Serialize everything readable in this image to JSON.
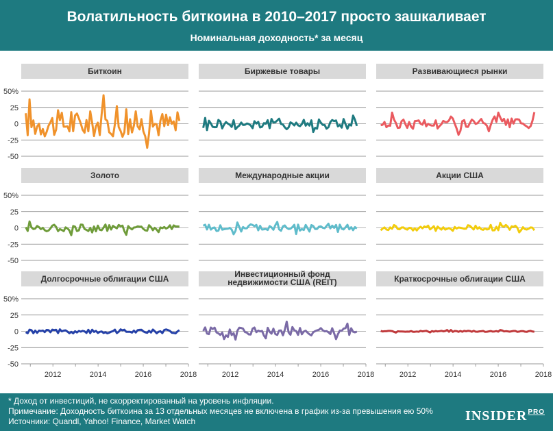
{
  "header": {
    "title": "Волатильность биткоина в 2010–2017 просто зашкаливает",
    "subtitle": "Номинальная доходность* за месяц"
  },
  "footer": {
    "note1": "* Доход от инвестиций, не скорректированный на уровень инфляции.",
    "note2": "Примечание: Доходность биткоина за 13 отдельных месяцев не включена в график из-за превышения ею 50%",
    "note3": "Источники: Quandl, Yahoo! Finance, Market Watch",
    "logo": "INSIDER",
    "logo_suffix": "PRO"
  },
  "colors": {
    "header_bg": "#1e7a80",
    "panel_label_bg": "#d9d9d9",
    "axis": "#555555"
  },
  "chart_data": [
    {
      "type": "line",
      "title": "Биткоин",
      "color": "#f0922b",
      "amplitude": "very high",
      "ylim": [
        -50,
        50
      ],
      "yticks": [
        "50%",
        "25",
        "0",
        "-25",
        "-50"
      ],
      "xticks": [
        "2012",
        "2014",
        "2016",
        "2018"
      ],
      "x_range": [
        2010.6,
        2018
      ],
      "series": [
        {
          "x_start": 2010.8,
          "x_end": 2017.6,
          "min": -37,
          "max": 46
        }
      ]
    },
    {
      "type": "line",
      "title": "Биржевые товары",
      "color": "#1e7a80",
      "amplitude": "low",
      "ylim": [
        -50,
        50
      ],
      "yticks": [
        "50%",
        "25",
        "0",
        "-25",
        "-50"
      ],
      "xticks": [
        "2012",
        "2014",
        "2016",
        "2018"
      ],
      "series": [
        {
          "x_start": 2010.8,
          "x_end": 2017.6,
          "min": -17,
          "max": 19
        }
      ]
    },
    {
      "type": "line",
      "title": "Развивающиеся рынки",
      "color": "#ea5a5f",
      "amplitude": "low",
      "ylim": [
        -50,
        50
      ],
      "yticks": [
        "50%",
        "25",
        "0",
        "-25",
        "-50"
      ],
      "xticks": [
        "2012",
        "2014",
        "2016",
        "2018"
      ],
      "series": [
        {
          "x_start": 2010.8,
          "x_end": 2017.6,
          "min": -17,
          "max": 18
        }
      ]
    },
    {
      "type": "line",
      "title": "Золото",
      "color": "#6f9c3a",
      "amplitude": "low",
      "ylim": [
        -50,
        50
      ],
      "yticks": [
        "50%",
        "25",
        "0",
        "-25",
        "-50"
      ],
      "xticks": [
        "2012",
        "2014",
        "2016",
        "2018"
      ],
      "series": [
        {
          "x_start": 2010.8,
          "x_end": 2017.6,
          "min": -12,
          "max": 12
        }
      ]
    },
    {
      "type": "line",
      "title": "Международные акции",
      "color": "#5fbccb",
      "amplitude": "low",
      "ylim": [
        -50,
        50
      ],
      "yticks": [
        "50%",
        "25",
        "0",
        "-25",
        "-50"
      ],
      "xticks": [
        "2012",
        "2014",
        "2016",
        "2018"
      ],
      "series": [
        {
          "x_start": 2010.8,
          "x_end": 2017.6,
          "min": -11,
          "max": 9
        }
      ]
    },
    {
      "type": "line",
      "title": "Акции США",
      "color": "#f2cc0c",
      "amplitude": "very low",
      "ylim": [
        -50,
        50
      ],
      "yticks": [
        "50%",
        "25",
        "0",
        "-25",
        "-50"
      ],
      "xticks": [
        "2012",
        "2014",
        "2016",
        "2018"
      ],
      "series": [
        {
          "x_start": 2010.8,
          "x_end": 2017.6,
          "min": -7,
          "max": 10
        }
      ]
    },
    {
      "type": "line",
      "title": "Долгосрочные облигации США",
      "color": "#2440a8",
      "amplitude": "very low",
      "ylim": [
        -50,
        50
      ],
      "yticks": [
        "50%",
        "25",
        "0",
        "-25",
        "-50"
      ],
      "xticks": [
        "2012",
        "2014",
        "2016",
        "2018"
      ],
      "series": [
        {
          "x_start": 2010.8,
          "x_end": 2017.6,
          "min": -7,
          "max": 6
        }
      ]
    },
    {
      "type": "line",
      "title": "Инвестиционный фонд недвижимости США (REIT)",
      "title_lines": [
        "Инвестиционный фонд",
        "недвижимости США (REIT)"
      ],
      "color": "#7a6aa6",
      "amplitude": "low",
      "ylim": [
        -50,
        50
      ],
      "yticks": [
        "50%",
        "25",
        "0",
        "-25",
        "-50"
      ],
      "xticks": [
        "2012",
        "2014",
        "2016",
        "2018"
      ],
      "series": [
        {
          "x_start": 2010.8,
          "x_end": 2017.6,
          "min": -14,
          "max": 15
        }
      ]
    },
    {
      "type": "line",
      "title": "Краткосрочные облигации США",
      "color": "#c0393b",
      "amplitude": "near zero",
      "ylim": [
        -50,
        50
      ],
      "yticks": [
        "50%",
        "25",
        "0",
        "-25",
        "-50"
      ],
      "xticks": [
        "2012",
        "2014",
        "2016",
        "2018"
      ],
      "series": [
        {
          "x_start": 2010.8,
          "x_end": 2017.6,
          "min": -2,
          "max": 2
        }
      ]
    }
  ]
}
